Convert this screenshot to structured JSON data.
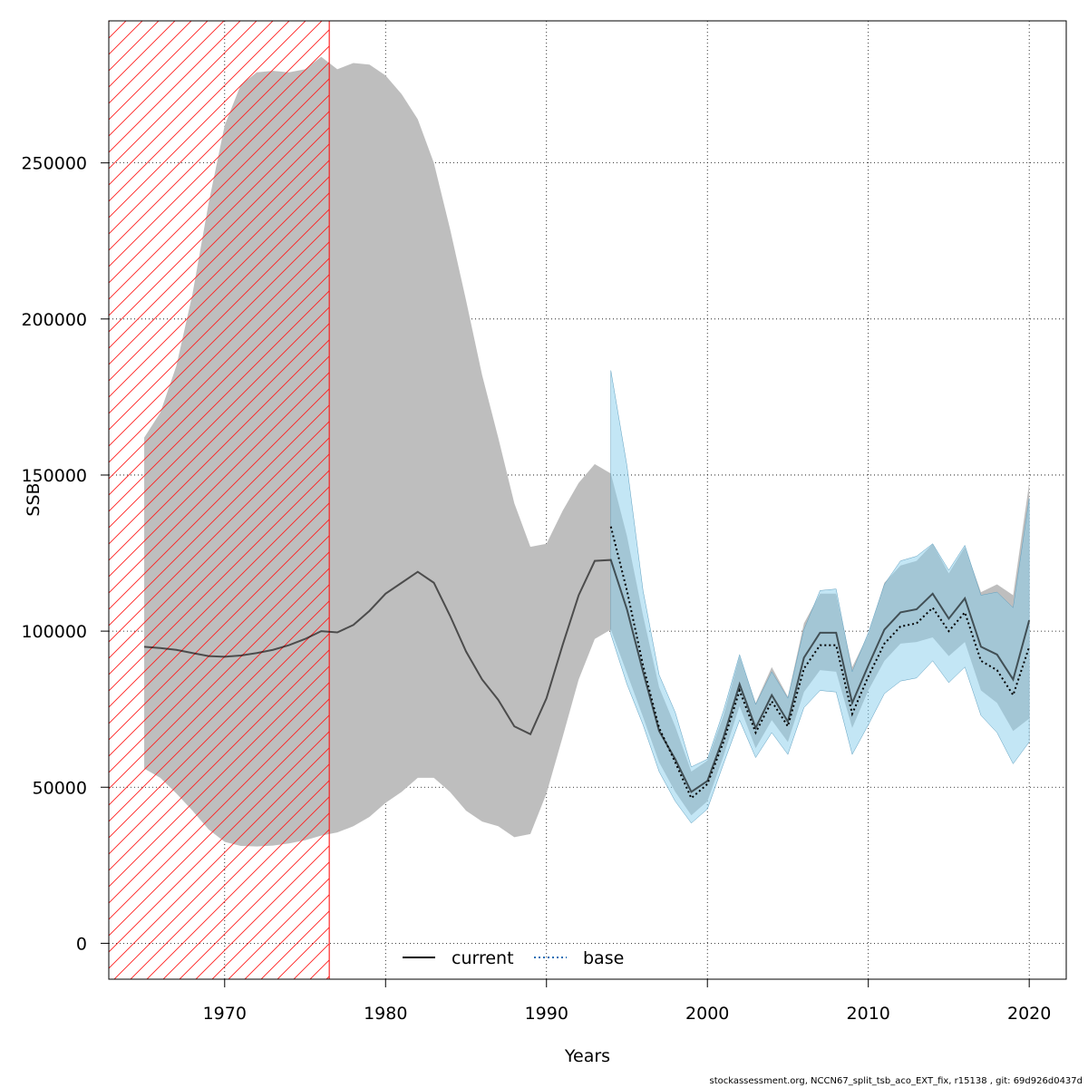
{
  "chart_data": {
    "type": "line",
    "xlabel": "Years",
    "ylabel": "SSB",
    "xlim": [
      1962.8,
      2022.3
    ],
    "ylim": [
      -11500,
      295500
    ],
    "xticks": [
      1970,
      1980,
      1990,
      2000,
      2010,
      2020
    ],
    "yticks": [
      0,
      50000,
      100000,
      150000,
      200000,
      250000
    ],
    "grid": true,
    "legend_position": "bottom-center",
    "shaded_period": {
      "x_start": 1962.8,
      "x_end": 1976.5,
      "pattern": "red diagonal hatch"
    },
    "series": [
      {
        "name": "current",
        "color": "#000000",
        "band_color": "#bebebe",
        "x": [
          1965,
          1966,
          1967,
          1968,
          1969,
          1970,
          1971,
          1972,
          1973,
          1974,
          1975,
          1976,
          1977,
          1978,
          1979,
          1980,
          1981,
          1982,
          1983,
          1984,
          1985,
          1986,
          1987,
          1988,
          1989,
          1990,
          1991,
          1992,
          1993,
          1994,
          1995,
          1996,
          1997,
          1998,
          1999,
          2000,
          2001,
          2002,
          2003,
          2004,
          2005,
          2006,
          2007,
          2008,
          2009,
          2010,
          2011,
          2012,
          2013,
          2014,
          2015,
          2016,
          2017,
          2018,
          2019,
          2020
        ],
        "values": [
          95000,
          94600,
          94000,
          93000,
          92000,
          91800,
          92200,
          93000,
          94000,
          95500,
          97500,
          100000,
          99600,
          102000,
          106500,
          112000,
          115500,
          119000,
          115500,
          105000,
          93500,
          84500,
          78000,
          69500,
          67000,
          78500,
          95500,
          111500,
          122500,
          122800,
          107000,
          87000,
          68000,
          59000,
          48500,
          52000,
          66000,
          83000,
          69000,
          79500,
          71000,
          91500,
          99500,
          99500,
          77000,
          89000,
          100500,
          106000,
          107000,
          112000,
          104000,
          110500,
          95000,
          92500,
          84500,
          103500
        ],
        "lower": [
          56000,
          53000,
          48000,
          42500,
          36500,
          32500,
          31200,
          31000,
          31300,
          32000,
          33000,
          34500,
          35500,
          37500,
          40500,
          45000,
          48500,
          53000,
          53000,
          48500,
          42500,
          39000,
          37500,
          34000,
          35000,
          48000,
          66000,
          84500,
          97500,
          100500,
          86500,
          72500,
          58000,
          48500,
          41000,
          45500,
          60000,
          76000,
          62500,
          71500,
          64500,
          80500,
          87500,
          87000,
          69000,
          81000,
          90500,
          96000,
          96500,
          98000,
          92000,
          96500,
          81000,
          77000,
          68000,
          72000
        ],
        "upper": [
          162000,
          170000,
          185000,
          208000,
          237000,
          262000,
          275000,
          279000,
          279500,
          279000,
          280000,
          284000,
          280000,
          282000,
          281500,
          278000,
          272000,
          264000,
          250000,
          229000,
          206000,
          182000,
          162000,
          141000,
          127000,
          128000,
          138500,
          147500,
          153500,
          150500,
          130500,
          105000,
          82000,
          69500,
          55000,
          58500,
          73000,
          92000,
          77000,
          88500,
          79000,
          102500,
          112000,
          112000,
          88500,
          99000,
          115500,
          121000,
          122500,
          128000,
          118500,
          127000,
          112500,
          115000,
          111500,
          147500
        ]
      },
      {
        "name": "base",
        "color": "#000000",
        "band_color": "#87ceeb",
        "x": [
          1994,
          1995,
          1996,
          1997,
          1998,
          1999,
          2000,
          2001,
          2002,
          2003,
          2004,
          2005,
          2006,
          2007,
          2008,
          2009,
          2010,
          2011,
          2012,
          2013,
          2014,
          2015,
          2016,
          2017,
          2018,
          2019,
          2020
        ],
        "values": [
          133500,
          113000,
          89000,
          69000,
          58000,
          46500,
          51000,
          64500,
          81000,
          67500,
          77500,
          69500,
          88000,
          95500,
          95500,
          73500,
          85500,
          96000,
          101500,
          102500,
          107500,
          100000,
          106000,
          90500,
          87500,
          79500,
          95000
        ],
        "lower": [
          99000,
          83000,
          70000,
          55000,
          45500,
          38500,
          43000,
          57500,
          71500,
          59500,
          67500,
          60500,
          75500,
          81000,
          80500,
          60500,
          70000,
          80000,
          84000,
          85000,
          90500,
          83500,
          88500,
          73000,
          67500,
          57500,
          64500
        ],
        "upper": [
          183500,
          153000,
          113000,
          86000,
          74000,
          56500,
          59000,
          74500,
          92500,
          76500,
          87000,
          78500,
          100500,
          113000,
          113500,
          87000,
          99500,
          115000,
          122500,
          124000,
          128000,
          119500,
          127500,
          111500,
          112500,
          107500,
          142500
        ]
      }
    ],
    "legend": [
      "current",
      "base"
    ]
  },
  "footer_note": "stockassessment.org, NCCN67_split_tsb_aco_EXT_fix, r15138 , git: 69d926d0437d"
}
